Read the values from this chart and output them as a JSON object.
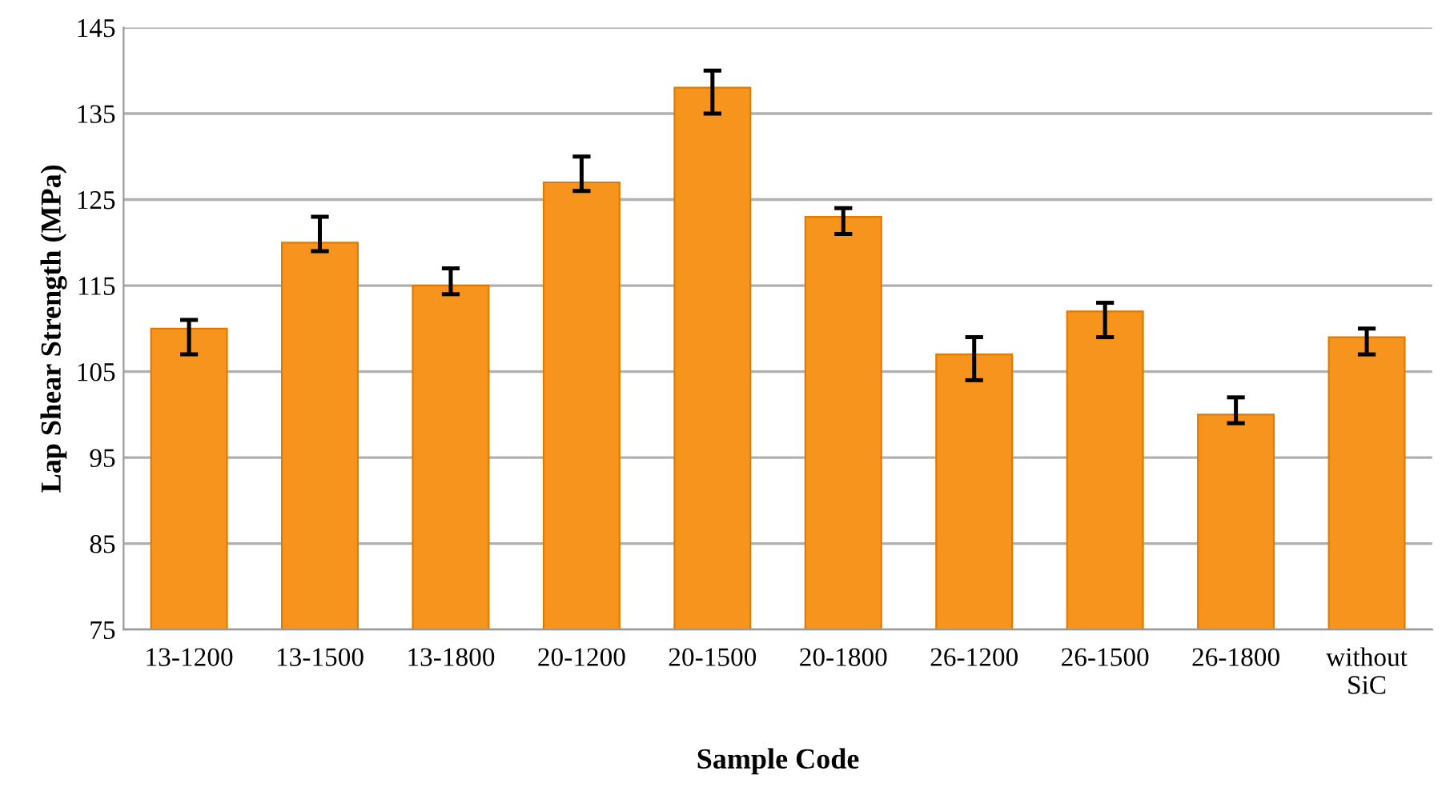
{
  "chart_data": {
    "type": "bar",
    "xlabel": "Sample Code",
    "ylabel": "Lap Shear Strength (MPa)",
    "categories": [
      "13-1200",
      "13-1500",
      "13-1800",
      "20-1200",
      "20-1500",
      "20-1800",
      "26-1200",
      "26-1500",
      "26-1800",
      "without\nSiC"
    ],
    "values": [
      110,
      120,
      115,
      127,
      138,
      123,
      107,
      112,
      100,
      109
    ],
    "errors": [
      [
        107,
        111
      ],
      [
        119,
        123
      ],
      [
        114,
        117
      ],
      [
        126,
        130
      ],
      [
        135,
        140
      ],
      [
        121,
        124
      ],
      [
        104,
        109
      ],
      [
        109,
        113
      ],
      [
        99,
        102
      ],
      [
        107,
        110
      ]
    ],
    "color": "#f7941d",
    "ylim": [
      75,
      145
    ],
    "yticks": [
      75,
      85,
      95,
      105,
      115,
      125,
      135,
      145
    ],
    "grid": "y"
  }
}
